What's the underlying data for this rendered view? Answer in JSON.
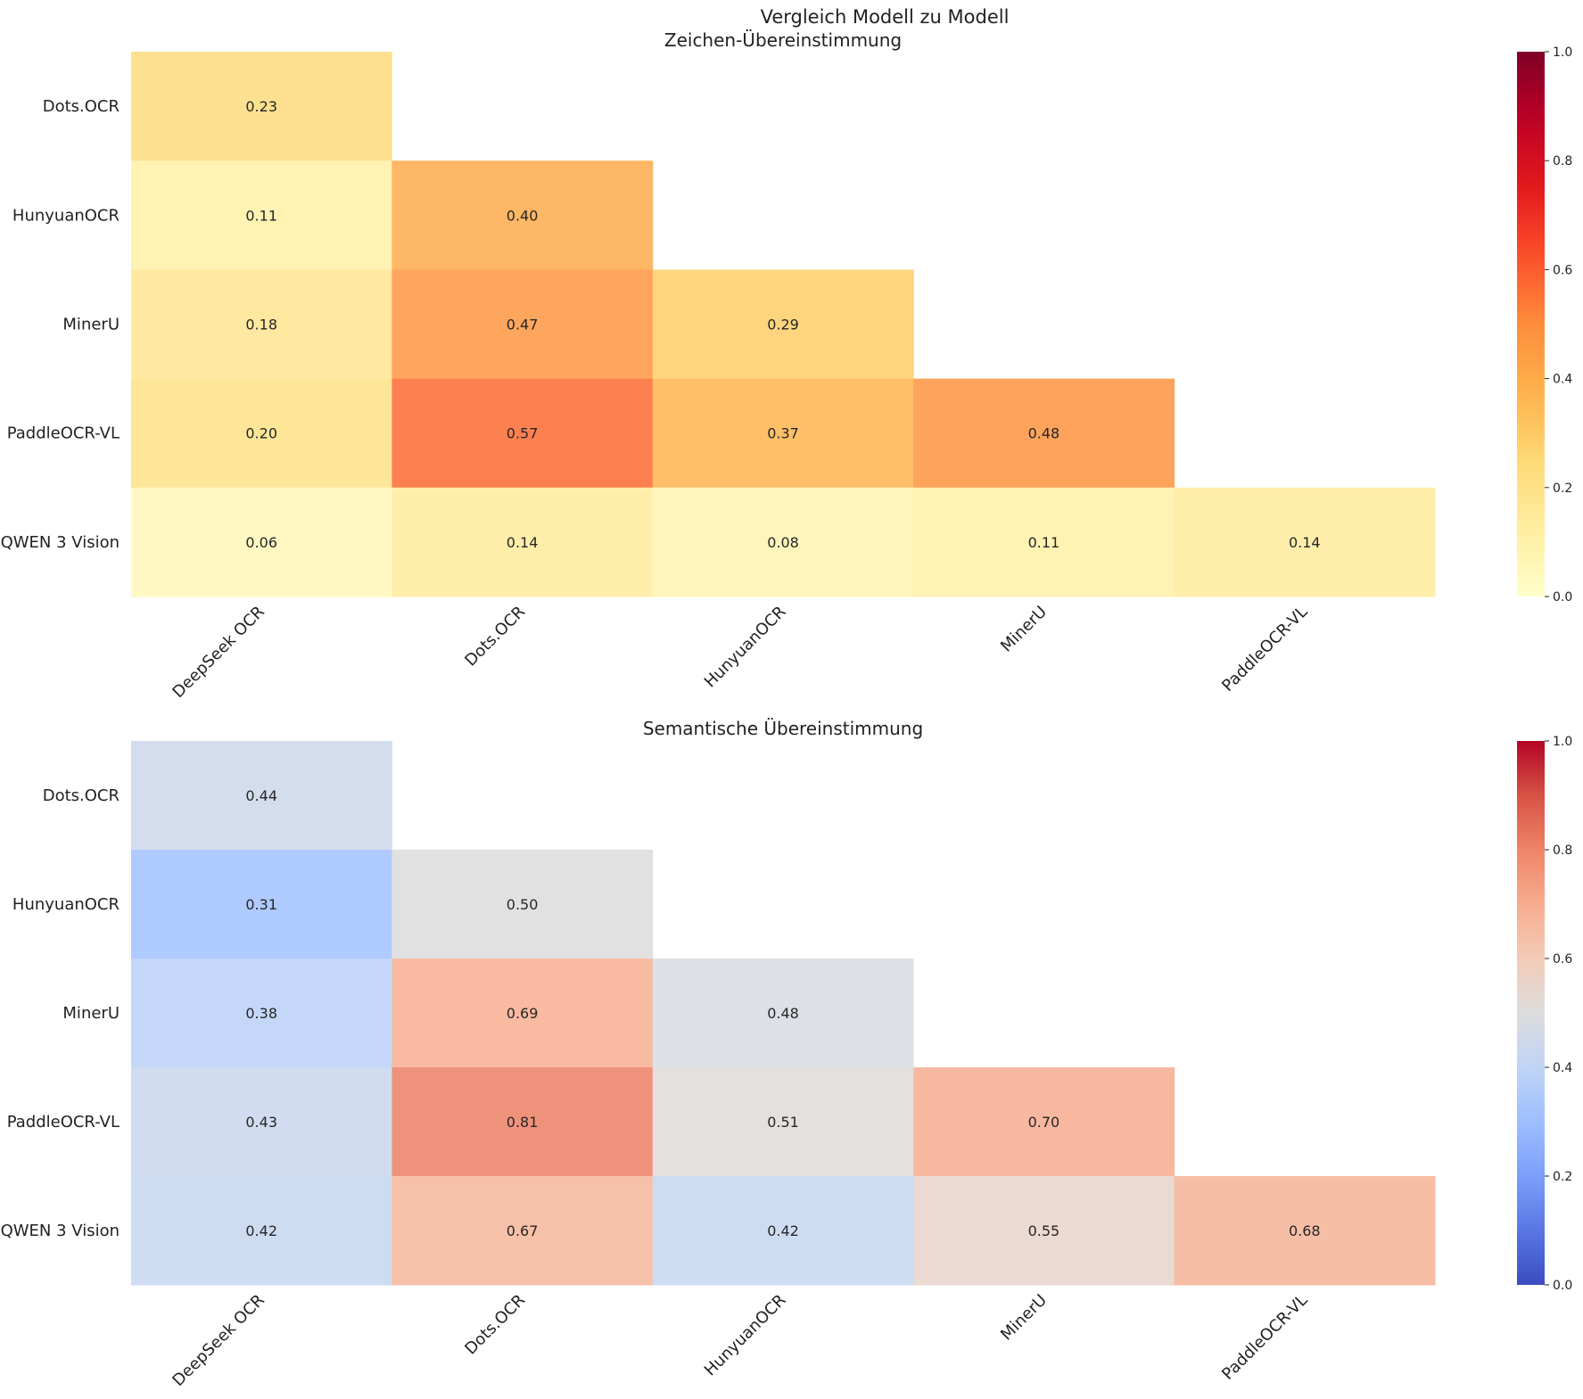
{
  "title": "Vergleich Modell zu Modell",
  "chart_data": [
    {
      "type": "heatmap",
      "title": "Zeichen-Übereinstimmung",
      "colormap": "YlOrRd",
      "row_labels": [
        "Dots.OCR",
        "HunyuanOCR",
        "MinerU",
        "PaddleOCR-VL",
        "QWEN 3 Vision"
      ],
      "col_labels": [
        "DeepSeek OCR",
        "Dots.OCR",
        "HunyuanOCR",
        "MinerU",
        "PaddleOCR-VL"
      ],
      "values": [
        [
          0.23,
          null,
          null,
          null,
          null
        ],
        [
          0.11,
          0.4,
          null,
          null,
          null
        ],
        [
          0.18,
          0.47,
          0.29,
          null,
          null
        ],
        [
          0.2,
          0.57,
          0.37,
          0.48,
          null
        ],
        [
          0.06,
          0.14,
          0.08,
          0.11,
          0.14
        ]
      ],
      "vmin": 0.0,
      "vmax": 1.0,
      "colorbar_ticks": [
        "0.0",
        "0.2",
        "0.4",
        "0.6",
        "0.8",
        "1.0"
      ]
    },
    {
      "type": "heatmap",
      "title": "Semantische Übereinstimmung",
      "colormap": "coolwarm",
      "row_labels": [
        "Dots.OCR",
        "HunyuanOCR",
        "MinerU",
        "PaddleOCR-VL",
        "QWEN 3 Vision"
      ],
      "col_labels": [
        "DeepSeek OCR",
        "Dots.OCR",
        "HunyuanOCR",
        "MinerU",
        "PaddleOCR-VL"
      ],
      "values": [
        [
          0.44,
          null,
          null,
          null,
          null
        ],
        [
          0.31,
          0.5,
          null,
          null,
          null
        ],
        [
          0.38,
          0.69,
          0.48,
          null,
          null
        ],
        [
          0.43,
          0.81,
          0.51,
          0.7,
          null
        ],
        [
          0.42,
          0.67,
          0.42,
          0.55,
          0.68
        ]
      ],
      "vmin": 0.0,
      "vmax": 1.0,
      "colorbar_ticks": [
        "0.0",
        "0.2",
        "0.4",
        "0.6",
        "0.8",
        "1.0"
      ]
    }
  ]
}
